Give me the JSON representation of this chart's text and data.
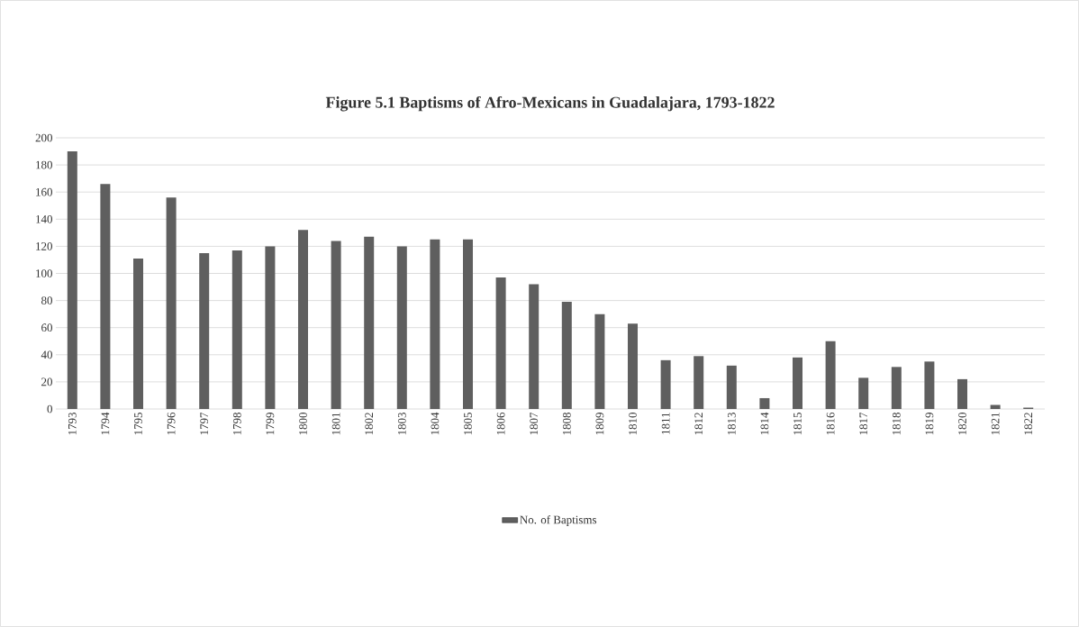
{
  "chart_data": {
    "type": "bar",
    "title": "Figure 5.1 Baptisms of Afro-Mexicans in Guadalajara, 1793-1822",
    "categories": [
      "1793",
      "1794",
      "1795",
      "1796",
      "1797",
      "1798",
      "1799",
      "1800",
      "1801",
      "1802",
      "1803",
      "1804",
      "1805",
      "1806",
      "1807",
      "1808",
      "1809",
      "1810",
      "1811",
      "1812",
      "1813",
      "1814",
      "1815",
      "1816",
      "1817",
      "1818",
      "1819",
      "1820",
      "1821",
      "1822"
    ],
    "series": [
      {
        "name": "No. of Baptisms",
        "color": "#5f5f5f",
        "values": [
          190,
          166,
          111,
          156,
          115,
          117,
          120,
          132,
          124,
          127,
          120,
          125,
          125,
          97,
          92,
          79,
          70,
          63,
          36,
          39,
          32,
          8,
          38,
          50,
          23,
          31,
          35,
          22,
          3,
          1
        ]
      }
    ],
    "ylim": [
      0,
      200
    ],
    "yticks": [
      0,
      20,
      40,
      60,
      80,
      100,
      120,
      140,
      160,
      180,
      200
    ],
    "grid": "y",
    "legend": "bottom"
  }
}
